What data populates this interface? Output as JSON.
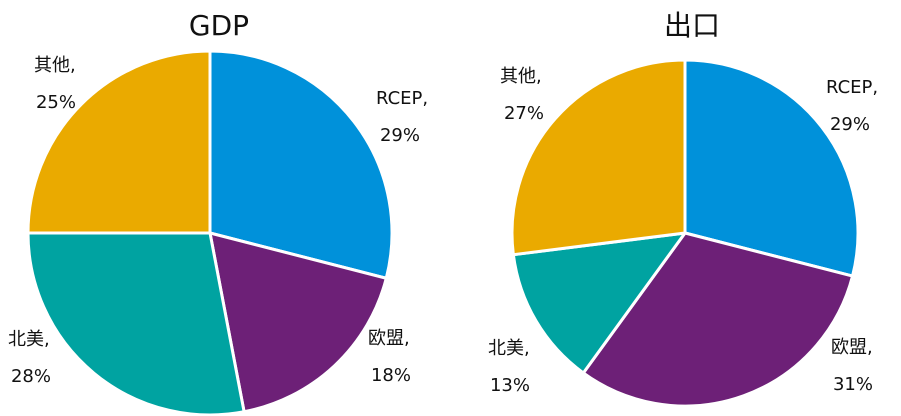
{
  "chart_data": [
    {
      "type": "pie",
      "title": "GDP",
      "categories": [
        "RCEP",
        "欧盟",
        "北美",
        "其他"
      ],
      "values": [
        29,
        18,
        28,
        25
      ],
      "value_labels": [
        "29%",
        "18%",
        "28%",
        "25%"
      ],
      "colors": [
        "#0091DA",
        "#6D2077",
        "#00A3A1",
        "#EAAA00"
      ],
      "label_separator": ","
    },
    {
      "type": "pie",
      "title": "出口",
      "categories": [
        "RCEP",
        "欧盟",
        "北美",
        "其他"
      ],
      "values": [
        29,
        31,
        13,
        27
      ],
      "value_labels": [
        "29%",
        "31%",
        "13%",
        "27%"
      ],
      "colors": [
        "#0091DA",
        "#6D2077",
        "#00A3A1",
        "#EAAA00"
      ],
      "label_separator": ","
    }
  ]
}
